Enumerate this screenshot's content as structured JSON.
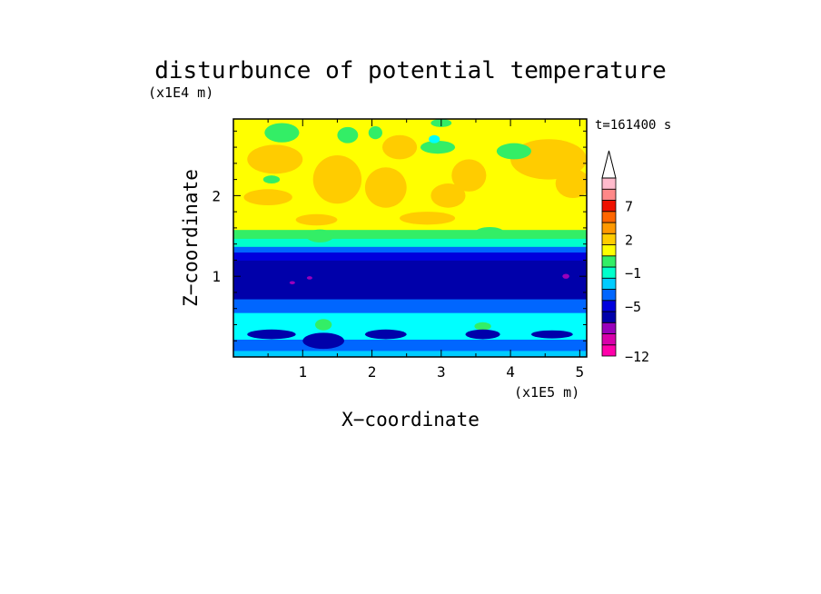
{
  "chart_data": {
    "type": "heatmap",
    "title": "disturbunce of potential temperature",
    "time_label": "t=161400 s",
    "xlabel": "X−coordinate",
    "ylabel": "Z−coordinate",
    "x_unit": "(x1E5 m)",
    "y_unit": "(x1E4 m)",
    "xlim": [
      0,
      5.1
    ],
    "ylim": [
      0,
      2.95
    ],
    "x_ticks": [
      "1",
      "2",
      "3",
      "4",
      "5"
    ],
    "x_tick_values": [
      1,
      2,
      3,
      4,
      5
    ],
    "y_ticks": [
      "1",
      "2"
    ],
    "y_tick_values": [
      1,
      2
    ],
    "colorbar": {
      "labels": [
        "7",
        "2",
        "−1",
        "−5",
        "−12"
      ],
      "label_values": [
        7,
        2,
        -1,
        -5,
        -12
      ],
      "levels_bottom_to_top": [
        {
          "color": "#ff00aa"
        },
        {
          "color": "#d800aa"
        },
        {
          "color": "#9900bb"
        },
        {
          "color": "#0000aa"
        },
        {
          "color": "#0000dd"
        },
        {
          "color": "#0066ff"
        },
        {
          "color": "#00ccff"
        },
        {
          "color": "#00ffcc"
        },
        {
          "color": "#33ee66"
        },
        {
          "color": "#ffff00"
        },
        {
          "color": "#ffcc00"
        },
        {
          "color": "#ff9900"
        },
        {
          "color": "#ff6600"
        },
        {
          "color": "#ee1100"
        },
        {
          "color": "#ff8888"
        },
        {
          "color": "#ffbbcc"
        }
      ],
      "extend_top": true
    },
    "bands_z": [
      {
        "z_from": 0.0,
        "z_to": 0.08,
        "color": "#00ccff"
      },
      {
        "z_from": 0.08,
        "z_to": 0.22,
        "color": "#0066ff"
      },
      {
        "z_from": 0.22,
        "z_to": 0.55,
        "color": "#00ffff"
      },
      {
        "z_from": 0.55,
        "z_to": 0.72,
        "color": "#0066ff"
      },
      {
        "z_from": 0.72,
        "z_to": 1.2,
        "color": "#0000aa"
      },
      {
        "z_from": 1.2,
        "z_to": 1.3,
        "color": "#0000dd"
      },
      {
        "z_from": 1.3,
        "z_to": 1.37,
        "color": "#0066ff"
      },
      {
        "z_from": 1.37,
        "z_to": 1.47,
        "color": "#00ffcc"
      },
      {
        "z_from": 1.47,
        "z_to": 1.58,
        "color": "#33ee66"
      },
      {
        "z_from": 1.58,
        "z_to": 2.95,
        "color": "#ffff00"
      }
    ],
    "orange_patches": [
      {
        "x": 0.5,
        "z": 1.98,
        "rx": 0.35,
        "rz": 0.1
      },
      {
        "x": 0.6,
        "z": 2.45,
        "rx": 0.4,
        "rz": 0.18
      },
      {
        "x": 1.5,
        "z": 2.2,
        "rx": 0.35,
        "rz": 0.3
      },
      {
        "x": 2.2,
        "z": 2.1,
        "rx": 0.3,
        "rz": 0.25
      },
      {
        "x": 2.4,
        "z": 2.6,
        "rx": 0.25,
        "rz": 0.15
      },
      {
        "x": 3.1,
        "z": 2.0,
        "rx": 0.25,
        "rz": 0.15
      },
      {
        "x": 3.4,
        "z": 2.25,
        "rx": 0.25,
        "rz": 0.2
      },
      {
        "x": 4.55,
        "z": 2.45,
        "rx": 0.55,
        "rz": 0.25
      },
      {
        "x": 4.9,
        "z": 2.15,
        "rx": 0.25,
        "rz": 0.18
      },
      {
        "x": 2.8,
        "z": 1.72,
        "rx": 0.4,
        "rz": 0.08
      },
      {
        "x": 1.2,
        "z": 1.7,
        "rx": 0.3,
        "rz": 0.07
      }
    ],
    "green_patches": [
      {
        "x": 0.7,
        "z": 2.78,
        "rx": 0.25,
        "rz": 0.12
      },
      {
        "x": 0.55,
        "z": 2.2,
        "rx": 0.12,
        "rz": 0.05
      },
      {
        "x": 1.65,
        "z": 2.75,
        "rx": 0.15,
        "rz": 0.1
      },
      {
        "x": 2.05,
        "z": 2.78,
        "rx": 0.1,
        "rz": 0.08
      },
      {
        "x": 2.95,
        "z": 2.6,
        "rx": 0.25,
        "rz": 0.08
      },
      {
        "x": 3.0,
        "z": 2.9,
        "rx": 0.15,
        "rz": 0.05
      },
      {
        "x": 4.05,
        "z": 2.55,
        "rx": 0.25,
        "rz": 0.1
      },
      {
        "x": 1.25,
        "z": 1.5,
        "rx": 0.2,
        "rz": 0.08
      },
      {
        "x": 3.7,
        "z": 1.55,
        "rx": 0.2,
        "rz": 0.06
      },
      {
        "x": 1.3,
        "z": 0.4,
        "rx": 0.12,
        "rz": 0.07
      },
      {
        "x": 3.6,
        "z": 0.38,
        "rx": 0.12,
        "rz": 0.05
      }
    ],
    "cyan_patches": [
      {
        "x": 2.9,
        "z": 2.7,
        "rx": 0.08,
        "rz": 0.05
      }
    ],
    "dark_patches": [
      {
        "x": 0.55,
        "z": 0.28,
        "rx": 0.35,
        "rz": 0.06
      },
      {
        "x": 1.3,
        "z": 0.2,
        "rx": 0.3,
        "rz": 0.1
      },
      {
        "x": 2.2,
        "z": 0.28,
        "rx": 0.3,
        "rz": 0.06
      },
      {
        "x": 3.6,
        "z": 0.28,
        "rx": 0.25,
        "rz": 0.06
      },
      {
        "x": 4.6,
        "z": 0.28,
        "rx": 0.3,
        "rz": 0.05
      }
    ],
    "magenta_patches": [
      {
        "x": 4.8,
        "z": 1.0,
        "rx": 0.05,
        "rz": 0.03
      },
      {
        "x": 0.85,
        "z": 0.92,
        "rx": 0.04,
        "rz": 0.02
      },
      {
        "x": 1.1,
        "z": 0.98,
        "rx": 0.04,
        "rz": 0.02
      }
    ]
  }
}
